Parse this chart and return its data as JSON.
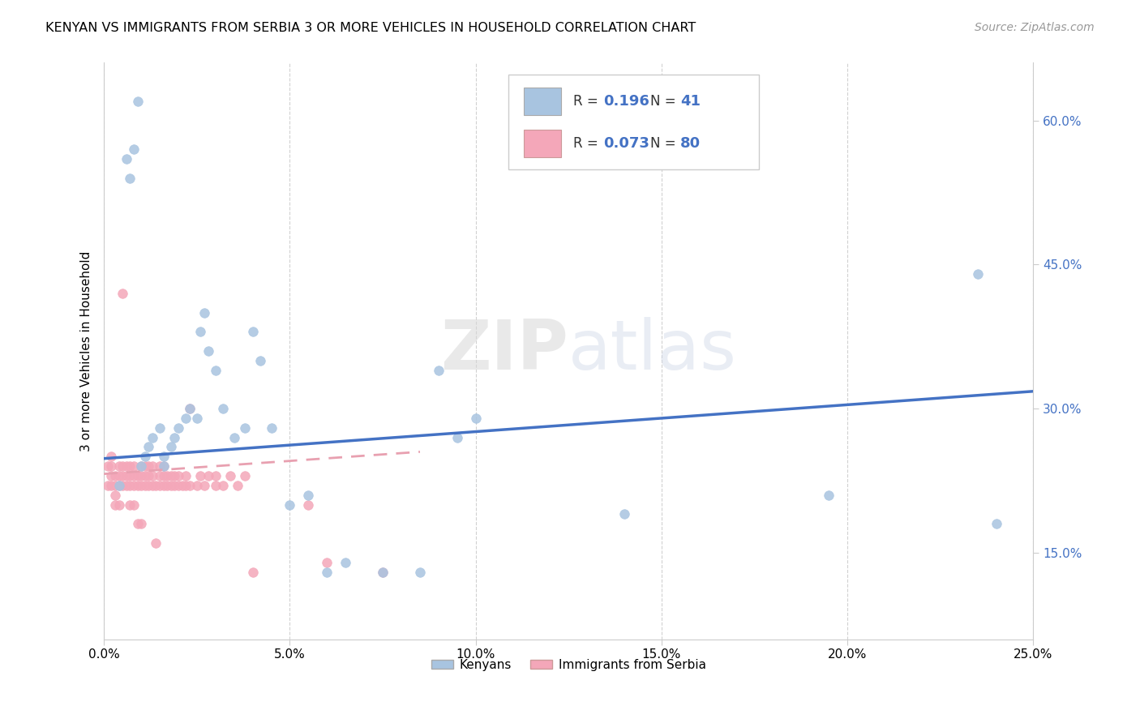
{
  "title": "KENYAN VS IMMIGRANTS FROM SERBIA 3 OR MORE VEHICLES IN HOUSEHOLD CORRELATION CHART",
  "source": "Source: ZipAtlas.com",
  "xlabel_ticks": [
    "0.0%",
    "5.0%",
    "10.0%",
    "15.0%",
    "20.0%",
    "25.0%"
  ],
  "xlabel_vals": [
    0.0,
    0.05,
    0.1,
    0.15,
    0.2,
    0.25
  ],
  "ylabel": "3 or more Vehicles in Household",
  "ylabel_ticks": [
    "15.0%",
    "30.0%",
    "45.0%",
    "60.0%"
  ],
  "ylabel_vals": [
    0.15,
    0.3,
    0.45,
    0.6
  ],
  "xmin": 0.0,
  "xmax": 0.25,
  "ymin": 0.06,
  "ymax": 0.66,
  "kenyan_color": "#a8c4e0",
  "kenyan_edge_color": "#6699cc",
  "serbia_color": "#f4a7b9",
  "serbia_edge_color": "#cc7799",
  "kenyan_line_color": "#4472c4",
  "serbia_line_color": "#e8a0b0",
  "R_kenyan": 0.196,
  "N_kenyan": 41,
  "R_serbia": 0.073,
  "N_serbia": 80,
  "legend_labels": [
    "Kenyans",
    "Immigrants from Serbia"
  ],
  "watermark": "ZIPatlas",
  "kenyan_trend_x0": 0.0,
  "kenyan_trend_y0": 0.248,
  "kenyan_trend_x1": 0.25,
  "kenyan_trend_y1": 0.318,
  "serbia_trend_x0": 0.0,
  "serbia_trend_y0": 0.232,
  "serbia_trend_x1": 0.085,
  "serbia_trend_y1": 0.255,
  "kenyan_scatter_x": [
    0.004,
    0.006,
    0.007,
    0.008,
    0.009,
    0.01,
    0.011,
    0.012,
    0.013,
    0.015,
    0.016,
    0.016,
    0.018,
    0.019,
    0.02,
    0.022,
    0.023,
    0.025,
    0.026,
    0.027,
    0.028,
    0.03,
    0.032,
    0.035,
    0.038,
    0.04,
    0.042,
    0.045,
    0.05,
    0.055,
    0.06,
    0.065,
    0.075,
    0.085,
    0.09,
    0.095,
    0.1,
    0.14,
    0.195,
    0.235,
    0.24
  ],
  "kenyan_scatter_y": [
    0.22,
    0.56,
    0.54,
    0.57,
    0.62,
    0.24,
    0.25,
    0.26,
    0.27,
    0.28,
    0.24,
    0.25,
    0.26,
    0.27,
    0.28,
    0.29,
    0.3,
    0.29,
    0.38,
    0.4,
    0.36,
    0.34,
    0.3,
    0.27,
    0.28,
    0.38,
    0.35,
    0.28,
    0.2,
    0.21,
    0.13,
    0.14,
    0.13,
    0.13,
    0.34,
    0.27,
    0.29,
    0.19,
    0.21,
    0.44,
    0.18
  ],
  "serbia_scatter_x": [
    0.001,
    0.001,
    0.002,
    0.002,
    0.002,
    0.002,
    0.003,
    0.003,
    0.003,
    0.003,
    0.004,
    0.004,
    0.004,
    0.004,
    0.005,
    0.005,
    0.005,
    0.005,
    0.006,
    0.006,
    0.006,
    0.007,
    0.007,
    0.007,
    0.007,
    0.008,
    0.008,
    0.008,
    0.008,
    0.009,
    0.009,
    0.009,
    0.01,
    0.01,
    0.01,
    0.01,
    0.011,
    0.011,
    0.011,
    0.012,
    0.012,
    0.012,
    0.013,
    0.013,
    0.013,
    0.014,
    0.014,
    0.015,
    0.015,
    0.015,
    0.016,
    0.016,
    0.016,
    0.017,
    0.017,
    0.018,
    0.018,
    0.019,
    0.019,
    0.02,
    0.02,
    0.021,
    0.022,
    0.022,
    0.023,
    0.023,
    0.025,
    0.026,
    0.027,
    0.028,
    0.03,
    0.03,
    0.032,
    0.034,
    0.036,
    0.038,
    0.04,
    0.055,
    0.06,
    0.075
  ],
  "serbia_scatter_y": [
    0.22,
    0.24,
    0.22,
    0.23,
    0.24,
    0.25,
    0.22,
    0.23,
    0.2,
    0.21,
    0.22,
    0.23,
    0.24,
    0.2,
    0.22,
    0.23,
    0.24,
    0.42,
    0.22,
    0.23,
    0.24,
    0.22,
    0.23,
    0.24,
    0.2,
    0.22,
    0.23,
    0.24,
    0.2,
    0.22,
    0.23,
    0.18,
    0.22,
    0.23,
    0.24,
    0.18,
    0.22,
    0.23,
    0.24,
    0.22,
    0.23,
    0.24,
    0.22,
    0.23,
    0.24,
    0.22,
    0.16,
    0.22,
    0.23,
    0.24,
    0.22,
    0.23,
    0.24,
    0.22,
    0.23,
    0.22,
    0.23,
    0.22,
    0.23,
    0.22,
    0.23,
    0.22,
    0.22,
    0.23,
    0.22,
    0.3,
    0.22,
    0.23,
    0.22,
    0.23,
    0.22,
    0.23,
    0.22,
    0.23,
    0.22,
    0.23,
    0.13,
    0.2,
    0.14,
    0.13
  ]
}
